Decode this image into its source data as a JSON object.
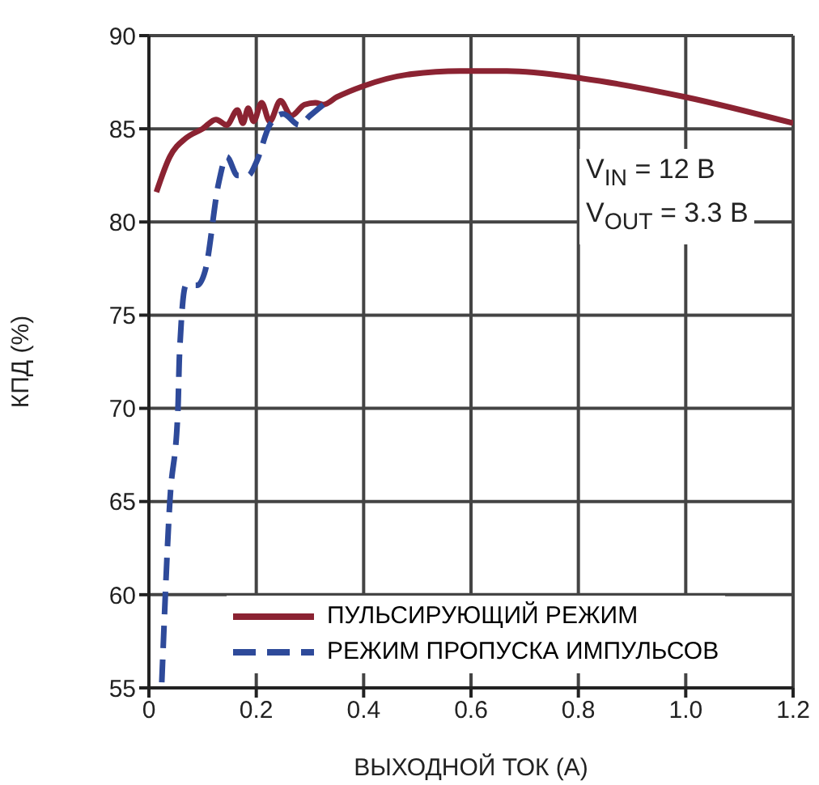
{
  "chart_data": {
    "type": "line",
    "xlabel": "ВЫХОДНОЙ ТОК (А)",
    "ylabel": "КПД (%)",
    "xlim": [
      0,
      1.2
    ],
    "xticks": [
      0,
      0.2,
      0.4,
      0.6,
      0.8,
      {
        "value": 1,
        "label": "1.0"
      },
      1.2
    ],
    "ylim": [
      55,
      90
    ],
    "yticks": [
      55,
      60,
      65,
      70,
      75,
      80,
      85,
      90
    ],
    "grid": true,
    "legend": "bottom",
    "annotations": [
      "V$_{IN}$ = 12 B",
      "V$_{OUT}$ = 3.3 B"
    ],
    "series": [
      {
        "name": "ПУЛЬСИРУЮЩИЙ РЕЖИМ",
        "color": "#8b2332",
        "line_style": "solid",
        "x": [
          0.014,
          0.039,
          0.069,
          0.1,
          0.125,
          0.145,
          0.165,
          0.175,
          0.185,
          0.195,
          0.21,
          0.225,
          0.245,
          0.265,
          0.29,
          0.31,
          0.325,
          0.35,
          0.4,
          0.48,
          0.58,
          0.667,
          0.808,
          1.0,
          1.2
        ],
        "values": [
          81.6,
          83.5,
          84.5,
          85.0,
          85.5,
          85.2,
          86.0,
          85.3,
          86.1,
          85.4,
          86.4,
          85.4,
          86.5,
          85.7,
          86.3,
          86.4,
          86.3,
          86.7,
          87.3,
          87.9,
          88.1,
          88.1,
          87.7,
          86.7,
          85.3
        ]
      },
      {
        "name": "РЕЖИМ ПРОПУСКА ИМПУЛЬСОВ",
        "color": "#2e4a9a",
        "line_style": "dashed",
        "x": [
          0.024,
          0.039,
          0.054,
          0.057,
          0.069,
          0.09,
          0.105,
          0.13,
          0.145,
          0.165,
          0.185,
          0.2,
          0.225,
          0.25,
          0.28,
          0.3,
          0.325
        ],
        "values": [
          55.3,
          65.0,
          69.9,
          72.9,
          76.6,
          76.6,
          77.4,
          82.1,
          83.5,
          82.5,
          82.5,
          83.2,
          85.2,
          85.8,
          85.2,
          85.7,
          86.3
        ]
      }
    ]
  }
}
